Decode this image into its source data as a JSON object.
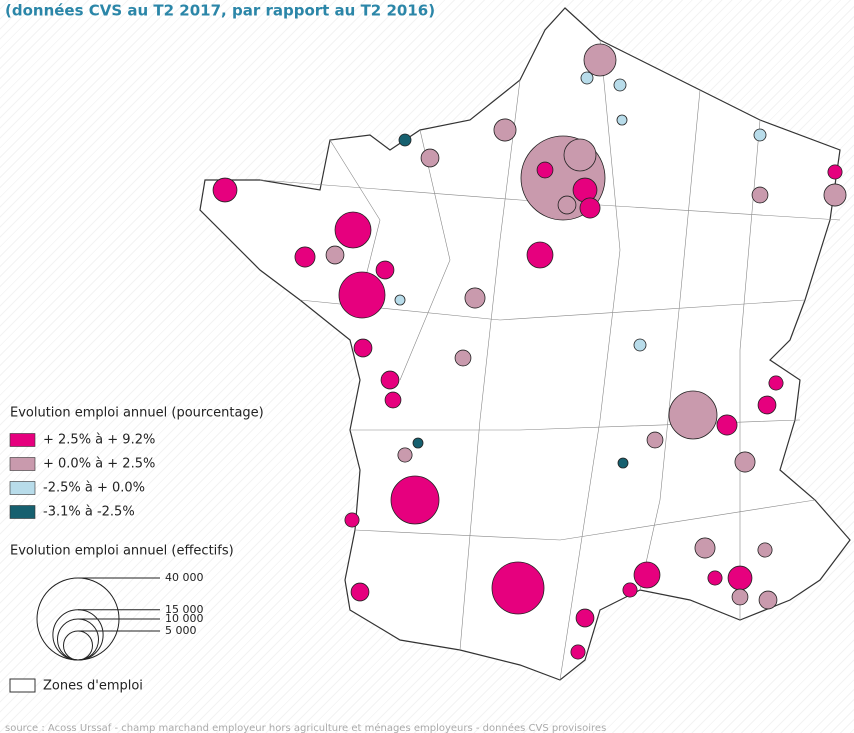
{
  "subtitle": "(données CVS au T2 2017, par rapport au T2 2016)",
  "legend_color_title": "Evolution emploi annuel (pourcentage)",
  "classes": [
    {
      "label": "+ 2.5% à + 9.2%",
      "color": "#e6007e"
    },
    {
      "label": "+ 0.0% à + 2.5%",
      "color": "#c99aad"
    },
    {
      "label": "-2.5% à + 0.0%",
      "color": "#b8dcea"
    },
    {
      "label": "-3.1% à -2.5%",
      "color": "#16606f"
    }
  ],
  "legend_size_title": "Evolution emploi annuel (effectifs)",
  "size_legend": [
    {
      "value": 40000,
      "label": "40 000"
    },
    {
      "value": 15000,
      "label": "15 000"
    },
    {
      "value": 10000,
      "label": "10 000"
    },
    {
      "value": 5000,
      "label": "5 000"
    }
  ],
  "zones_label": "Zones d'emploi",
  "source": "source : Acoss Urssaf - champ marchand employeur hors agriculture et ménages employeurs - données CVS provisoires",
  "zones": [
    {
      "class": 1,
      "effectifs": 42000
    },
    {
      "class": 1,
      "effectifs": 6100
    },
    {
      "class": 0,
      "effectifs": 1500
    },
    {
      "class": 0,
      "effectifs": 3400
    },
    {
      "class": 0,
      "effectifs": 2400
    },
    {
      "class": 1,
      "effectifs": 1900
    },
    {
      "class": 1,
      "effectifs": 6100
    },
    {
      "class": 0,
      "effectifs": 4000
    },
    {
      "class": 0,
      "effectifs": 7700
    },
    {
      "class": 0,
      "effectifs": 12600
    },
    {
      "class": 0,
      "effectifs": 2400
    },
    {
      "class": 1,
      "effectifs": 1900
    },
    {
      "class": 0,
      "effectifs": 3400
    },
    {
      "class": 0,
      "effectifs": 1900
    },
    {
      "class": 0,
      "effectifs": 13700
    },
    {
      "class": 0,
      "effectifs": 16100
    },
    {
      "class": 1,
      "effectifs": 13700
    },
    {
      "class": 0,
      "effectifs": 2400
    },
    {
      "class": 1,
      "effectifs": 2400
    },
    {
      "class": 0,
      "effectifs": 1900
    },
    {
      "class": 0,
      "effectifs": 1200
    },
    {
      "class": 0,
      "effectifs": 3400
    },
    {
      "class": 0,
      "effectifs": 4000
    },
    {
      "class": 1,
      "effectifs": 2400
    },
    {
      "class": 1,
      "effectifs": 1900
    },
    {
      "class": 1,
      "effectifs": 1500
    },
    {
      "class": 0,
      "effectifs": 1200
    },
    {
      "class": 0,
      "effectifs": 1900
    },
    {
      "class": 0,
      "effectifs": 1200
    },
    {
      "class": 0,
      "effectifs": 1200
    },
    {
      "class": 1,
      "effectifs": 2900
    },
    {
      "class": 0,
      "effectifs": 1200
    },
    {
      "class": 1,
      "effectifs": 1500
    },
    {
      "class": 1,
      "effectifs": 2900
    },
    {
      "class": 1,
      "effectifs": 1900
    },
    {
      "class": 0,
      "effectifs": 1900
    },
    {
      "class": 0,
      "effectifs": 1900
    },
    {
      "class": 0,
      "effectifs": 1500
    },
    {
      "class": 1,
      "effectifs": 1200
    },
    {
      "class": 0,
      "effectifs": 1900
    },
    {
      "class": 0,
      "effectifs": 1200
    },
    {
      "class": 1,
      "effectifs": 2400
    },
    {
      "class": 1,
      "effectifs": 1500
    },
    {
      "class": 1,
      "effectifs": 1500
    },
    {
      "class": 1,
      "effectifs": 1200
    },
    {
      "class": 3,
      "effectifs": 860
    },
    {
      "class": 3,
      "effectifs": 600
    },
    {
      "class": 3,
      "effectifs": 600
    },
    {
      "class": 2,
      "effectifs": 860
    },
    {
      "class": 2,
      "effectifs": 860
    },
    {
      "class": 2,
      "effectifs": 860
    },
    {
      "class": 2,
      "effectifs": 600
    },
    {
      "class": 2,
      "effectifs": 860
    },
    {
      "class": 2,
      "effectifs": 600
    }
  ]
}
